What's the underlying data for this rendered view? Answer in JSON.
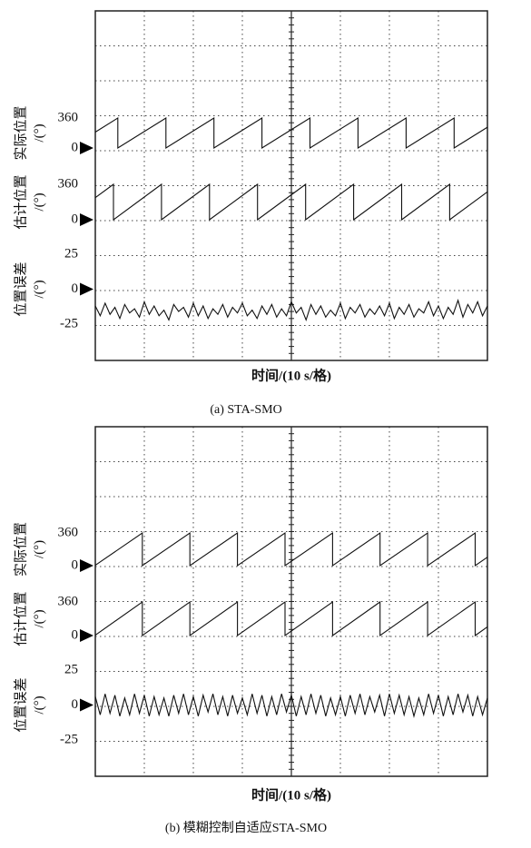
{
  "chart_data": [
    {
      "type": "scope",
      "xlabel": "时间/(10 s/格)",
      "caption": "(a) STA-SMO",
      "xlim": [
        0,
        80
      ],
      "series": [
        {
          "name": "实际位置",
          "unit": "/(°)",
          "ylim": [
            0,
            360
          ],
          "yticks": [
            0,
            360
          ],
          "x": [
            0,
            4.6,
            4.6,
            14.4,
            14.4,
            24.2,
            24.2,
            34,
            34,
            43.8,
            43.8,
            53.6,
            53.6,
            63.4,
            63.4,
            73.2,
            73.2,
            80
          ],
          "values": [
            191,
            360,
            0,
            360,
            0,
            360,
            0,
            360,
            0,
            360,
            0,
            360,
            0,
            360,
            0,
            360,
            0,
            250
          ]
        },
        {
          "name": "估计位置",
          "unit": "/(°)",
          "ylim": [
            0,
            360
          ],
          "yticks": [
            0,
            360
          ],
          "x": [
            0,
            3.7,
            3.7,
            13.5,
            13.5,
            23.3,
            23.3,
            33.1,
            33.1,
            42.9,
            42.9,
            52.7,
            52.7,
            62.5,
            62.5,
            72.3,
            72.3,
            80
          ],
          "values": [
            224,
            360,
            0,
            360,
            0,
            360,
            0,
            360,
            0,
            360,
            0,
            360,
            0,
            360,
            0,
            360,
            0,
            283
          ]
        },
        {
          "name": "位置误差",
          "unit": "/(°)",
          "ylim": [
            -25,
            25
          ],
          "yticks": [
            -25,
            0,
            25
          ],
          "x": [
            0,
            1,
            2,
            3,
            4,
            5,
            6,
            7,
            8,
            9,
            10,
            11,
            12,
            13,
            14,
            15,
            16,
            17,
            18,
            19,
            20,
            21,
            22,
            23,
            24,
            25,
            26,
            27,
            28,
            29,
            30,
            31,
            32,
            33,
            34,
            35,
            36,
            37,
            38,
            39,
            40,
            41,
            42,
            43,
            44,
            45,
            46,
            47,
            48,
            49,
            50,
            51,
            52,
            53,
            54,
            55,
            56,
            57,
            58,
            59,
            60,
            61,
            62,
            63,
            64,
            65,
            66,
            67,
            68,
            69,
            70,
            71,
            72,
            73,
            74,
            75,
            76,
            77,
            78,
            79,
            80
          ],
          "values": [
            -12,
            -19,
            -10,
            -18,
            -13,
            -21,
            -11,
            -17,
            -14,
            -20,
            -9,
            -18,
            -12,
            -19,
            -15,
            -22,
            -11,
            -16,
            -13,
            -20,
            -10,
            -19,
            -12,
            -21,
            -14,
            -18,
            -11,
            -20,
            -13,
            -17,
            -10,
            -19,
            -15,
            -21,
            -12,
            -18,
            -11,
            -20,
            -14,
            -19,
            -9,
            -17,
            -13,
            -22,
            -11,
            -18,
            -12,
            -20,
            -15,
            -19,
            -10,
            -21,
            -13,
            -17,
            -11,
            -20,
            -14,
            -18,
            -12,
            -19,
            -10,
            -21,
            -13,
            -18,
            -11,
            -20,
            -14,
            -17,
            -9,
            -19,
            -12,
            -21,
            -13,
            -18,
            -8,
            -20,
            -11,
            -17,
            -9,
            -19,
            -12
          ]
        }
      ]
    },
    {
      "type": "scope",
      "xlabel": "时间/(10 s/格)",
      "caption": "(b) 模糊控制自适应STA-SMO",
      "xlim": [
        0,
        80
      ],
      "series": [
        {
          "name": "实际位置",
          "unit": "/(°)",
          "ylim": [
            0,
            360
          ],
          "yticks": [
            0,
            360
          ],
          "x": [
            0,
            9.6,
            9.6,
            19.3,
            19.3,
            29,
            29,
            38.7,
            38.7,
            48.4,
            48.4,
            58.1,
            58.1,
            67.8,
            67.8,
            77.5,
            77.5,
            80
          ],
          "values": [
            4,
            360,
            0,
            360,
            0,
            360,
            0,
            360,
            0,
            360,
            0,
            360,
            0,
            360,
            0,
            360,
            0,
            93
          ]
        },
        {
          "name": "估计位置",
          "unit": "/(°)",
          "ylim": [
            0,
            360
          ],
          "yticks": [
            0,
            360
          ],
          "x": [
            0,
            9.6,
            9.6,
            19.3,
            19.3,
            29,
            29,
            38.7,
            38.7,
            48.4,
            48.4,
            58.1,
            58.1,
            67.8,
            67.8,
            77.5,
            77.5,
            80
          ],
          "values": [
            4,
            360,
            0,
            360,
            0,
            360,
            0,
            360,
            0,
            360,
            0,
            360,
            0,
            360,
            0,
            360,
            0,
            93
          ]
        },
        {
          "name": "位置误差",
          "unit": "/(°)",
          "ylim": [
            -25,
            25
          ],
          "yticks": [
            -25,
            0,
            25
          ],
          "x": [
            0,
            1,
            2,
            3,
            4,
            5,
            6,
            7,
            8,
            9,
            10,
            11,
            12,
            13,
            14,
            15,
            16,
            17,
            18,
            19,
            20,
            21,
            22,
            23,
            24,
            25,
            26,
            27,
            28,
            29,
            30,
            31,
            32,
            33,
            34,
            35,
            36,
            37,
            38,
            39,
            40,
            41,
            42,
            43,
            44,
            45,
            46,
            47,
            48,
            49,
            50,
            51,
            52,
            53,
            54,
            55,
            56,
            57,
            58,
            59,
            60,
            61,
            62,
            63,
            64,
            65,
            66,
            67,
            68,
            69,
            70,
            71,
            72,
            73,
            74,
            75,
            76,
            77,
            78,
            79,
            80
          ],
          "values": [
            6,
            -7,
            8,
            -6,
            7,
            -8,
            5,
            -7,
            8,
            -6,
            7,
            -8,
            6,
            -7,
            5,
            -8,
            7,
            -6,
            8,
            -7,
            6,
            -8,
            7,
            -5,
            8,
            -7,
            6,
            -8,
            7,
            -6,
            5,
            -7,
            8,
            -6,
            7,
            -8,
            6,
            -7,
            8,
            -5,
            7,
            -8,
            6,
            -7,
            8,
            -6,
            7,
            -8,
            5,
            -7,
            6,
            -8,
            7,
            -6,
            8,
            -7,
            6,
            -5,
            7,
            -8,
            8,
            -6,
            7,
            -7,
            6,
            -8,
            5,
            -7,
            8,
            -6,
            7,
            -8,
            6,
            -7,
            8,
            -5,
            7,
            -8,
            6,
            -7,
            5
          ]
        }
      ]
    }
  ]
}
